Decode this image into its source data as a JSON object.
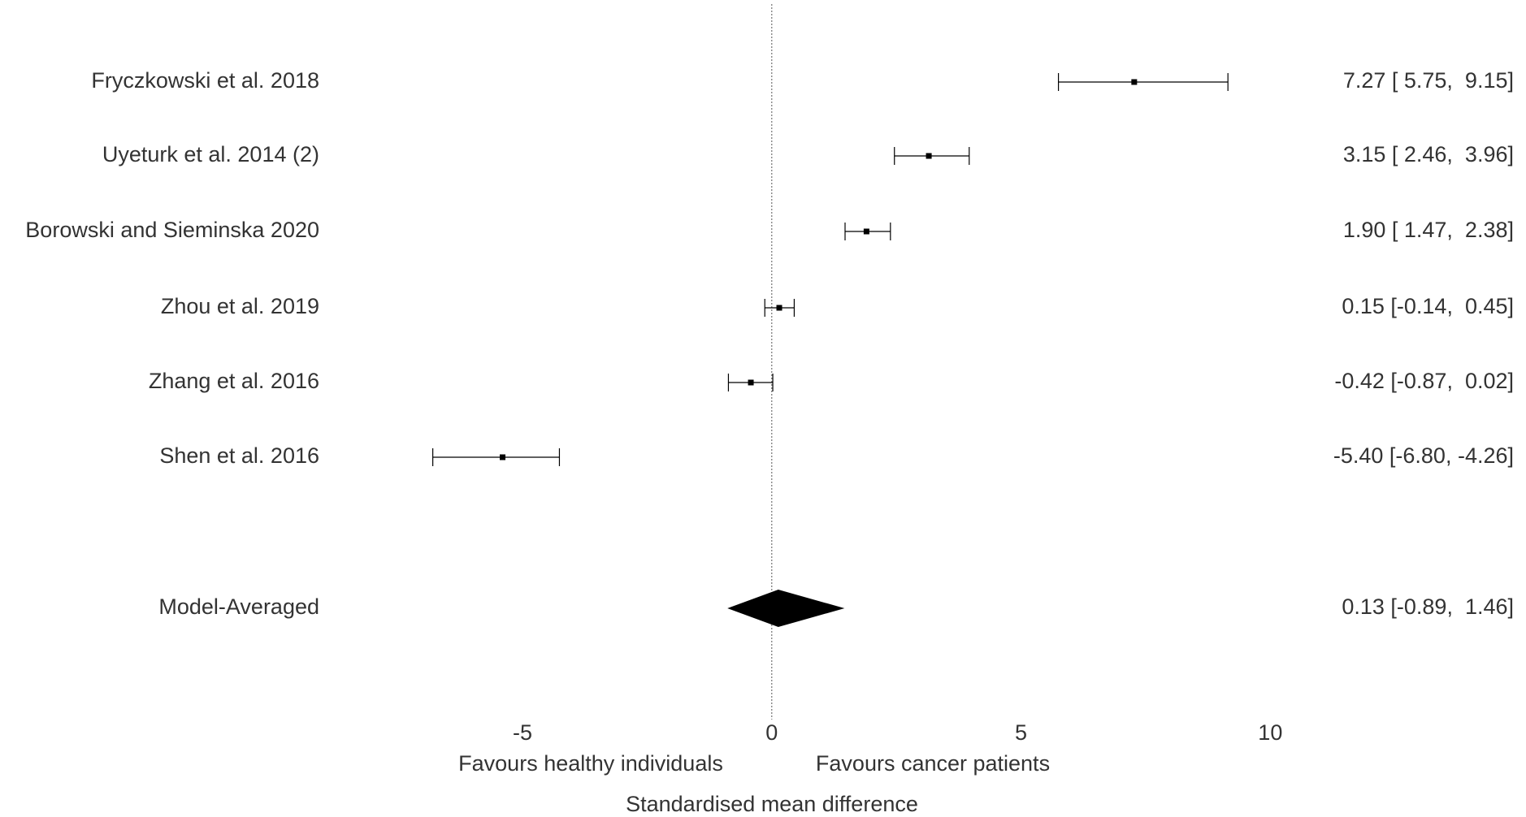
{
  "chart_data": {
    "type": "forest",
    "xlabel": "Standardised mean difference",
    "favours_labels": [
      "Favours healthy individuals",
      "Favours cancer patients"
    ],
    "categories": [
      "Fryczkowski et al. 2018",
      "Uyeturk et al. 2014 (2)",
      "Borowski and Sieminska 2020",
      "Zhou et al. 2019",
      "Zhang et al. 2016",
      "Shen et al. 2016"
    ],
    "values": [
      7.27,
      3.15,
      1.9,
      0.15,
      -0.42,
      -5.4
    ],
    "lower": [
      5.75,
      2.46,
      1.47,
      -0.14,
      -0.87,
      -6.8
    ],
    "upper": [
      9.15,
      3.96,
      2.38,
      0.45,
      0.02,
      -4.26
    ],
    "value_labels": [
      "7.27 [ 5.75,  9.15]",
      "3.15 [ 2.46,  3.96]",
      "1.90 [ 1.47,  2.38]",
      "0.15 [-0.14,  0.45]",
      "-0.42 [-0.87,  0.02]",
      "-5.40 [-6.80, -4.26]"
    ],
    "summary": {
      "name": "Model-Averaged",
      "value": 0.13,
      "lower": -0.89,
      "upper": 1.46,
      "value_label": "0.13 [-0.89,  1.46]"
    },
    "xlim": [
      -8,
      10.5
    ],
    "xticks": [
      -5,
      0,
      5,
      10
    ],
    "color": "#000000"
  }
}
